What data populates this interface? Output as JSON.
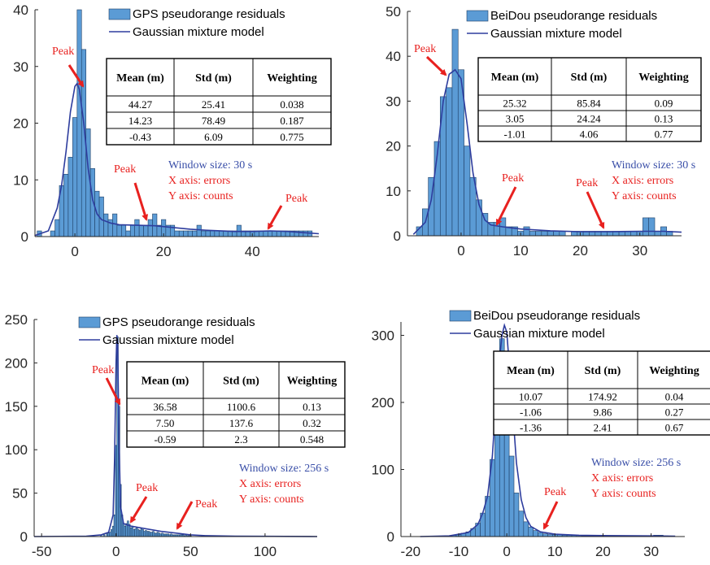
{
  "colors": {
    "bar_fill": "#5b9bd5",
    "bar_edge": "#1f3f66",
    "fit_line": "#2e3d9e",
    "peak_red": "#e8211f",
    "window_blue": "#3a4fa8",
    "axis": "#262626"
  },
  "table_header": [
    "Mean (m)",
    "Std (m)",
    "Weighting"
  ],
  "chart_data": [
    {
      "type": "bar",
      "legend": [
        "GPS pseudorange residuals",
        "Gaussian mixture model"
      ],
      "xlim": [
        -9,
        55
      ],
      "ylim": [
        0,
        40
      ],
      "xticks": [
        0,
        20,
        40
      ],
      "yticks": [
        0,
        10,
        20,
        30,
        40
      ],
      "bin_width": 1,
      "bins": [
        [
          -8,
          1
        ],
        [
          -7,
          0
        ],
        [
          -6,
          0
        ],
        [
          -5,
          1
        ],
        [
          -4,
          3
        ],
        [
          -3,
          9
        ],
        [
          -2,
          11
        ],
        [
          -1,
          14
        ],
        [
          0,
          21
        ],
        [
          1,
          40
        ],
        [
          2,
          33
        ],
        [
          3,
          19
        ],
        [
          4,
          12
        ],
        [
          5,
          8
        ],
        [
          6,
          7
        ],
        [
          7,
          4
        ],
        [
          8,
          3
        ],
        [
          9,
          4
        ],
        [
          10,
          2
        ],
        [
          11,
          2
        ],
        [
          12,
          1
        ],
        [
          13,
          2
        ],
        [
          14,
          3
        ],
        [
          15,
          2
        ],
        [
          16,
          2
        ],
        [
          17,
          3
        ],
        [
          18,
          4
        ],
        [
          19,
          2
        ],
        [
          20,
          3
        ],
        [
          21,
          2
        ],
        [
          22,
          2
        ],
        [
          23,
          1
        ],
        [
          24,
          1
        ],
        [
          25,
          1
        ],
        [
          26,
          1
        ],
        [
          27,
          1
        ],
        [
          28,
          2
        ],
        [
          29,
          1
        ],
        [
          30,
          1
        ],
        [
          31,
          1
        ],
        [
          32,
          1
        ],
        [
          33,
          1
        ],
        [
          34,
          1
        ],
        [
          35,
          1
        ],
        [
          36,
          1
        ],
        [
          37,
          2
        ],
        [
          38,
          1
        ],
        [
          39,
          1
        ],
        [
          40,
          1
        ],
        [
          41,
          1
        ],
        [
          42,
          1
        ],
        [
          43,
          1
        ],
        [
          44,
          1
        ],
        [
          45,
          1
        ],
        [
          46,
          1
        ],
        [
          47,
          1
        ],
        [
          48,
          1
        ],
        [
          49,
          1
        ],
        [
          50,
          1
        ],
        [
          51,
          1
        ],
        [
          52,
          1
        ],
        [
          53,
          1
        ]
      ],
      "fit": [
        [
          -9,
          0.2
        ],
        [
          -6,
          1
        ],
        [
          -4,
          5
        ],
        [
          -3,
          9
        ],
        [
          -2,
          15
        ],
        [
          -1,
          22
        ],
        [
          0,
          26.5
        ],
        [
          0.5,
          27
        ],
        [
          1,
          26
        ],
        [
          2,
          20
        ],
        [
          3,
          12
        ],
        [
          4,
          6.5
        ],
        [
          5,
          4
        ],
        [
          6,
          3
        ],
        [
          8,
          2.4
        ],
        [
          10,
          2.1
        ],
        [
          14,
          2
        ],
        [
          18,
          1.9
        ],
        [
          22,
          1.6
        ],
        [
          26,
          1.3
        ],
        [
          30,
          1.1
        ],
        [
          36,
          0.9
        ],
        [
          40,
          0.9
        ],
        [
          44,
          1
        ],
        [
          48,
          0.9
        ],
        [
          55,
          0.5
        ]
      ],
      "table": [
        [
          "44.27",
          "25.41",
          "0.038"
        ],
        [
          "14.23",
          "78.49",
          "0.187"
        ],
        [
          "-0.43",
          "6.09",
          "0.775"
        ]
      ],
      "window": "Window  size: 30 s",
      "xaxis_note": "X axis: errors",
      "yaxis_note": "Y axis: counts",
      "peak_label": "Peak"
    },
    {
      "type": "bar",
      "legend": [
        "BeiDou pseudorange residuals",
        "Gaussian mixture model"
      ],
      "xlim": [
        -9,
        37
      ],
      "ylim": [
        0,
        50
      ],
      "xticks": [
        0,
        10,
        20,
        30
      ],
      "yticks": [
        0,
        10,
        20,
        30,
        40,
        50
      ],
      "bin_width": 1,
      "bins": [
        [
          -7,
          2
        ],
        [
          -6,
          6
        ],
        [
          -5,
          13
        ],
        [
          -4,
          21
        ],
        [
          -3,
          31
        ],
        [
          -2,
          33
        ],
        [
          -1,
          46
        ],
        [
          0,
          37
        ],
        [
          1,
          20
        ],
        [
          2,
          13
        ],
        [
          3,
          8
        ],
        [
          4,
          5
        ],
        [
          5,
          3
        ],
        [
          6,
          3
        ],
        [
          7,
          4
        ],
        [
          8,
          2
        ],
        [
          9,
          2
        ],
        [
          10,
          1
        ],
        [
          11,
          2
        ],
        [
          12,
          1
        ],
        [
          13,
          1
        ],
        [
          14,
          1
        ],
        [
          15,
          1
        ],
        [
          16,
          1
        ],
        [
          17,
          1
        ],
        [
          18,
          0
        ],
        [
          19,
          1
        ],
        [
          20,
          1
        ],
        [
          21,
          1
        ],
        [
          22,
          1
        ],
        [
          23,
          1
        ],
        [
          24,
          1
        ],
        [
          25,
          1
        ],
        [
          26,
          1
        ],
        [
          27,
          1
        ],
        [
          28,
          1
        ],
        [
          29,
          1
        ],
        [
          30,
          1
        ],
        [
          31,
          4
        ],
        [
          32,
          4
        ],
        [
          33,
          1
        ],
        [
          34,
          2
        ],
        [
          35,
          1
        ]
      ],
      "fit": [
        [
          -8,
          0.3
        ],
        [
          -6,
          3
        ],
        [
          -5,
          8
        ],
        [
          -4,
          18
        ],
        [
          -3,
          30
        ],
        [
          -2,
          36
        ],
        [
          -1,
          37
        ],
        [
          0,
          35
        ],
        [
          1,
          25
        ],
        [
          2,
          14
        ],
        [
          3,
          7
        ],
        [
          4,
          3.5
        ],
        [
          5,
          2.4
        ],
        [
          7,
          2
        ],
        [
          10,
          1.5
        ],
        [
          15,
          1.1
        ],
        [
          20,
          0.9
        ],
        [
          25,
          0.9
        ],
        [
          30,
          1
        ],
        [
          34,
          1
        ],
        [
          37,
          0.8
        ]
      ],
      "table": [
        [
          "25.32",
          "85.84",
          "0.09"
        ],
        [
          "3.05",
          "24.24",
          "0.13"
        ],
        [
          "-1.01",
          "4.06",
          "0.77"
        ]
      ],
      "window": "Window  size: 30 s",
      "xaxis_note": "X axis: errors",
      "yaxis_note": "Y axis: counts",
      "peak_label": "Peak"
    },
    {
      "type": "bar",
      "legend": [
        "GPS pseudorange residuals",
        "Gaussian mixture model"
      ],
      "xlim": [
        -55,
        135
      ],
      "ylim": [
        0,
        250
      ],
      "xticks": [
        -50,
        0,
        50,
        100
      ],
      "yticks": [
        0,
        50,
        100,
        150,
        200,
        250
      ],
      "bin_width": 1,
      "bins": [
        [
          -10,
          2
        ],
        [
          -8,
          2
        ],
        [
          -6,
          3
        ],
        [
          -5,
          4
        ],
        [
          -4,
          5
        ],
        [
          -3,
          8
        ],
        [
          -2,
          12
        ],
        [
          -1,
          25
        ],
        [
          0,
          105
        ],
        [
          1,
          230
        ],
        [
          2,
          150
        ],
        [
          3,
          60
        ],
        [
          4,
          25
        ],
        [
          5,
          15
        ],
        [
          6,
          12
        ],
        [
          7,
          15
        ],
        [
          8,
          18
        ],
        [
          9,
          14
        ],
        [
          10,
          10
        ],
        [
          11,
          12
        ],
        [
          12,
          8
        ],
        [
          13,
          9
        ],
        [
          14,
          10
        ],
        [
          15,
          8
        ],
        [
          16,
          7
        ],
        [
          17,
          9
        ],
        [
          18,
          8
        ],
        [
          19,
          6
        ],
        [
          20,
          7
        ],
        [
          21,
          6
        ],
        [
          22,
          6
        ],
        [
          23,
          5
        ],
        [
          24,
          5
        ],
        [
          25,
          6
        ],
        [
          26,
          4
        ],
        [
          27,
          4
        ],
        [
          28,
          5
        ],
        [
          29,
          4
        ],
        [
          30,
          3
        ],
        [
          31,
          4
        ],
        [
          32,
          3
        ],
        [
          33,
          3
        ],
        [
          34,
          3
        ],
        [
          35,
          3
        ],
        [
          36,
          2
        ],
        [
          37,
          3
        ],
        [
          38,
          2
        ],
        [
          39,
          2
        ],
        [
          40,
          2
        ],
        [
          41,
          2
        ],
        [
          42,
          2
        ],
        [
          43,
          2
        ],
        [
          44,
          2
        ],
        [
          45,
          2
        ],
        [
          46,
          1
        ],
        [
          47,
          2
        ],
        [
          48,
          1
        ],
        [
          49,
          1
        ],
        [
          50,
          1
        ]
      ],
      "fit": [
        [
          -55,
          0
        ],
        [
          -20,
          0.5
        ],
        [
          -10,
          2
        ],
        [
          -5,
          5
        ],
        [
          -2,
          25
        ],
        [
          -1,
          90
        ],
        [
          0,
          200
        ],
        [
          0.5,
          232
        ],
        [
          1,
          225
        ],
        [
          2,
          110
        ],
        [
          3,
          35
        ],
        [
          5,
          15
        ],
        [
          10,
          12
        ],
        [
          20,
          9
        ],
        [
          30,
          6
        ],
        [
          40,
          4
        ],
        [
          50,
          2
        ],
        [
          60,
          1
        ],
        [
          80,
          0.5
        ],
        [
          135,
          0
        ]
      ],
      "table": [
        [
          "36.58",
          "1100.6",
          "0.13"
        ],
        [
          "7.50",
          "137.6",
          "0.32"
        ],
        [
          "-0.59",
          "2.3",
          "0.548"
        ]
      ],
      "window": "Window  size: 256 s",
      "xaxis_note": "X axis: errors",
      "yaxis_note": "Y axis: counts",
      "peak_label": "Peak"
    },
    {
      "type": "bar",
      "legend": [
        "BeiDou pseudorange residuals",
        "Gaussian mixture model"
      ],
      "xlim": [
        -22,
        37
      ],
      "ylim": [
        0,
        320
      ],
      "xticks": [
        -20,
        -10,
        0,
        10,
        20,
        30
      ],
      "yticks": [
        0,
        100,
        200,
        300
      ],
      "bin_width": 1,
      "bins": [
        [
          -12,
          1
        ],
        [
          -11,
          2
        ],
        [
          -10,
          3
        ],
        [
          -9,
          5
        ],
        [
          -8,
          7
        ],
        [
          -7,
          12
        ],
        [
          -6,
          20
        ],
        [
          -5,
          35
        ],
        [
          -4,
          60
        ],
        [
          -3,
          115
        ],
        [
          -2,
          240
        ],
        [
          -1,
          295
        ],
        [
          0,
          230
        ],
        [
          1,
          120
        ],
        [
          2,
          65
        ],
        [
          3,
          38
        ],
        [
          4,
          22
        ],
        [
          5,
          14
        ],
        [
          6,
          9
        ],
        [
          7,
          6
        ],
        [
          8,
          4
        ],
        [
          9,
          3
        ],
        [
          10,
          3
        ],
        [
          11,
          3
        ],
        [
          12,
          2
        ],
        [
          13,
          2
        ],
        [
          14,
          2
        ],
        [
          15,
          2
        ],
        [
          16,
          1
        ],
        [
          17,
          1
        ],
        [
          18,
          1
        ],
        [
          19,
          1
        ],
        [
          20,
          1
        ],
        [
          21,
          1
        ],
        [
          22,
          1
        ],
        [
          23,
          1
        ],
        [
          24,
          1
        ],
        [
          25,
          1
        ],
        [
          26,
          1
        ],
        [
          27,
          1
        ],
        [
          28,
          1
        ],
        [
          29,
          1
        ],
        [
          30,
          1
        ],
        [
          31,
          2
        ],
        [
          32,
          2
        ],
        [
          33,
          1
        ]
      ],
      "fit": [
        [
          -18,
          0
        ],
        [
          -12,
          1
        ],
        [
          -8,
          6
        ],
        [
          -6,
          18
        ],
        [
          -5,
          35
        ],
        [
          -4,
          60
        ],
        [
          -3,
          120
        ],
        [
          -2,
          230
        ],
        [
          -1,
          300
        ],
        [
          -0.5,
          315
        ],
        [
          0,
          305
        ],
        [
          1,
          210
        ],
        [
          2,
          110
        ],
        [
          3,
          55
        ],
        [
          4,
          28
        ],
        [
          5,
          15
        ],
        [
          7,
          7
        ],
        [
          10,
          3.5
        ],
        [
          15,
          2
        ],
        [
          20,
          1.5
        ],
        [
          30,
          1
        ],
        [
          35,
          0.5
        ]
      ],
      "table": [
        [
          "10.07",
          "174.92",
          "0.04"
        ],
        [
          "-1.06",
          "9.86",
          "0.27"
        ],
        [
          "-1.36",
          "2.41",
          "0.67"
        ]
      ],
      "window": "Window  size: 256 s",
      "xaxis_note": "X axis: errors",
      "yaxis_note": "Y axis: counts",
      "peak_label": "Peak"
    }
  ]
}
